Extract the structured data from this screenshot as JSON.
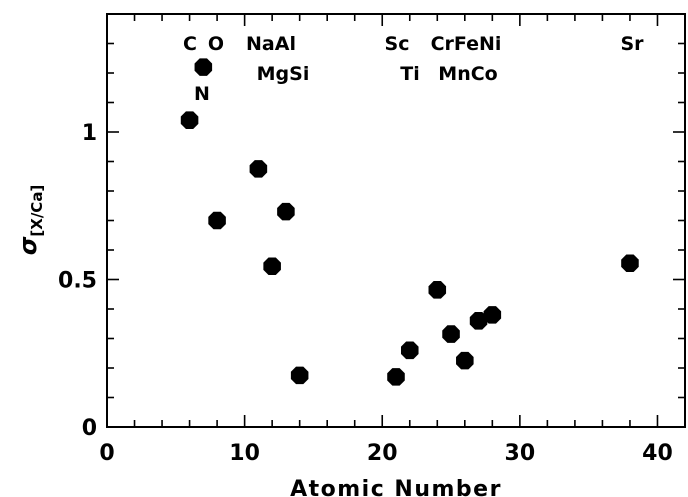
{
  "chart_data": {
    "type": "scatter",
    "title": "",
    "xlabel": "Atomic Number",
    "ylabel_main": "σ",
    "ylabel_sub": "[X/Ca]",
    "xlim": [
      0,
      42
    ],
    "ylim": [
      0,
      1.4
    ],
    "x_ticks": [
      0,
      10,
      20,
      30,
      40
    ],
    "x_tick_labels": [
      "0",
      "10",
      "20",
      "30",
      "40"
    ],
    "y_ticks": [
      0,
      0.5,
      1
    ],
    "y_tick_labels": [
      "0",
      "0.5",
      "1"
    ],
    "grid": false,
    "marker_color": "#000000",
    "points": [
      {
        "element": "C",
        "x": 6,
        "y": 1.04
      },
      {
        "element": "N",
        "x": 7,
        "y": 1.22
      },
      {
        "element": "O",
        "x": 8,
        "y": 0.7
      },
      {
        "element": "Na",
        "x": 11,
        "y": 0.875
      },
      {
        "element": "Mg",
        "x": 12,
        "y": 0.545
      },
      {
        "element": "Al",
        "x": 13,
        "y": 0.73
      },
      {
        "element": "Si",
        "x": 14,
        "y": 0.175
      },
      {
        "element": "Sc",
        "x": 21,
        "y": 0.17
      },
      {
        "element": "Ti",
        "x": 22,
        "y": 0.26
      },
      {
        "element": "Cr",
        "x": 24,
        "y": 0.465
      },
      {
        "element": "Mn",
        "x": 25,
        "y": 0.315
      },
      {
        "element": "Fe",
        "x": 26,
        "y": 0.225
      },
      {
        "element": "Co",
        "x": 27,
        "y": 0.36
      },
      {
        "element": "Ni",
        "x": 28,
        "y": 0.38
      },
      {
        "element": "Sr",
        "x": 38,
        "y": 0.555
      }
    ],
    "annotations_row1": [
      "C",
      "O",
      "NaAl",
      "Sc",
      "CrFeNi",
      "Sr"
    ],
    "annotations_row2": [
      "MgSi",
      "Ti",
      "MnCo"
    ],
    "annotations_row3": [
      "N"
    ]
  }
}
